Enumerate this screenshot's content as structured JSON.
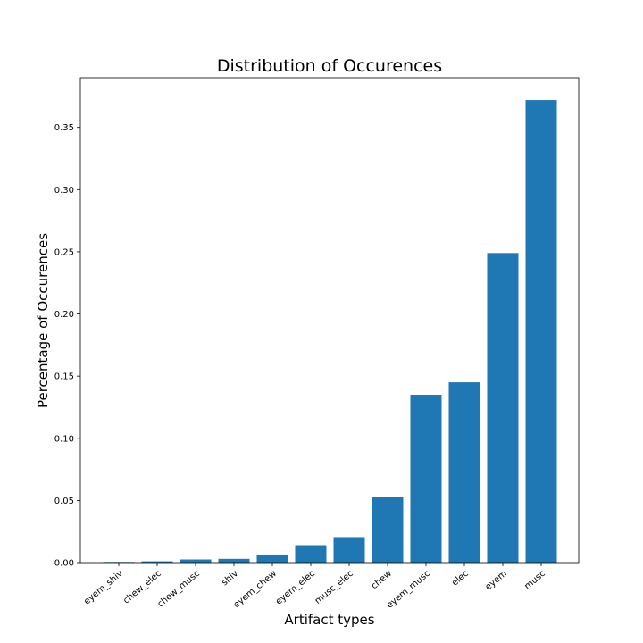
{
  "chart_data": {
    "type": "bar",
    "title": "Distribution of Occurences",
    "xlabel": "Artifact types",
    "ylabel": "Percentage of Occurences",
    "categories": [
      "eyem_shiv",
      "chew_elec",
      "chew_musc",
      "shiv",
      "eyem_chew",
      "eyem_elec",
      "musc_elec",
      "chew",
      "eyem_musc",
      "elec",
      "eyem",
      "musc"
    ],
    "values": [
      0.0005,
      0.001,
      0.0025,
      0.003,
      0.0065,
      0.014,
      0.0205,
      0.053,
      0.135,
      0.145,
      0.249,
      0.372
    ],
    "ylim": [
      0,
      0.39
    ],
    "yticks": [
      "0.00",
      "0.05",
      "0.10",
      "0.15",
      "0.20",
      "0.25",
      "0.30",
      "0.35"
    ],
    "grid": false,
    "bar_color": "#1f77b4"
  }
}
